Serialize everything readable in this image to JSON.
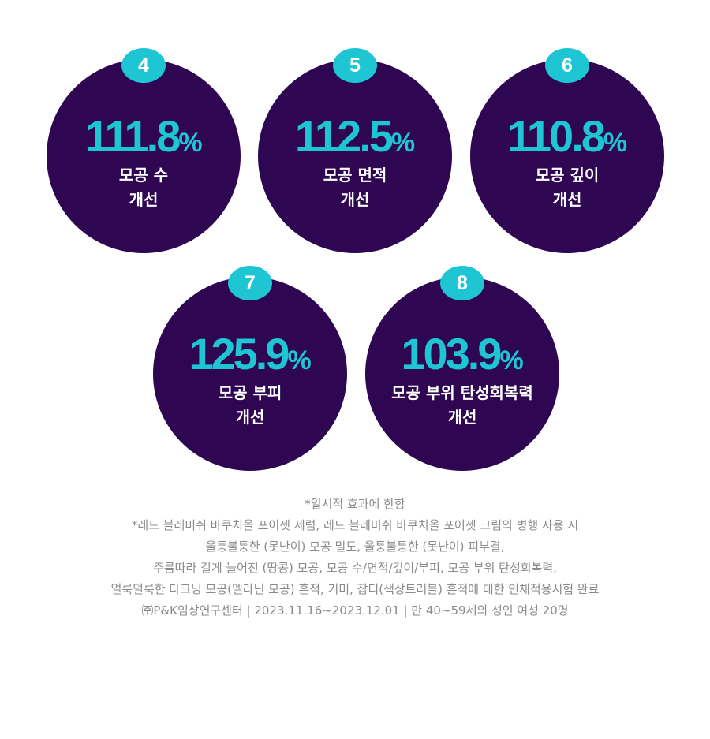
{
  "colors": {
    "circle": "#2e0652",
    "accent": "#1ec6d3",
    "label": "#ffffff",
    "note": "#8a8a8a"
  },
  "stats": [
    {
      "badge": "4",
      "value": "111.8",
      "unit": "%",
      "label_line1": "모공 수",
      "label_line2": "개선"
    },
    {
      "badge": "5",
      "value": "112.5",
      "unit": "%",
      "label_line1": "모공 면적",
      "label_line2": "개선"
    },
    {
      "badge": "6",
      "value": "110.8",
      "unit": "%",
      "label_line1": "모공 깊이",
      "label_line2": "개선"
    },
    {
      "badge": "7",
      "value": "125.9",
      "unit": "%",
      "label_line1": "모공 부피",
      "label_line2": "개선"
    },
    {
      "badge": "8",
      "value": "103.9",
      "unit": "%",
      "label_line1": "모공 부위 탄성회복력",
      "label_line2": "개선"
    }
  ],
  "notes": [
    "*일시적 효과에 한함",
    "*레드 블레미쉬 바쿠치올 포어젯 세럼, 레드 블레미쉬 바쿠치올 포어젯 크림의 병행 사용 시",
    "울퉁불퉁한 (못난이) 모공 밀도, 울퉁불퉁한 (못난이) 피부결,",
    "주름따라 길게 늘어진 (땅콩) 모공, 모공 수/면적/깊이/부피, 모공 부위 탄성회복력,",
    "얼룩덜룩한 다크닝 모공(멜라닌 모공) 흔적, 기미, 잡티(색상트러블) 흔적에 대한 인체적용시험 완료",
    "㈜P&K임상연구센터 | 2023.11.16~2023.12.01 | 만 40~59세의 성인 여성 20명"
  ]
}
